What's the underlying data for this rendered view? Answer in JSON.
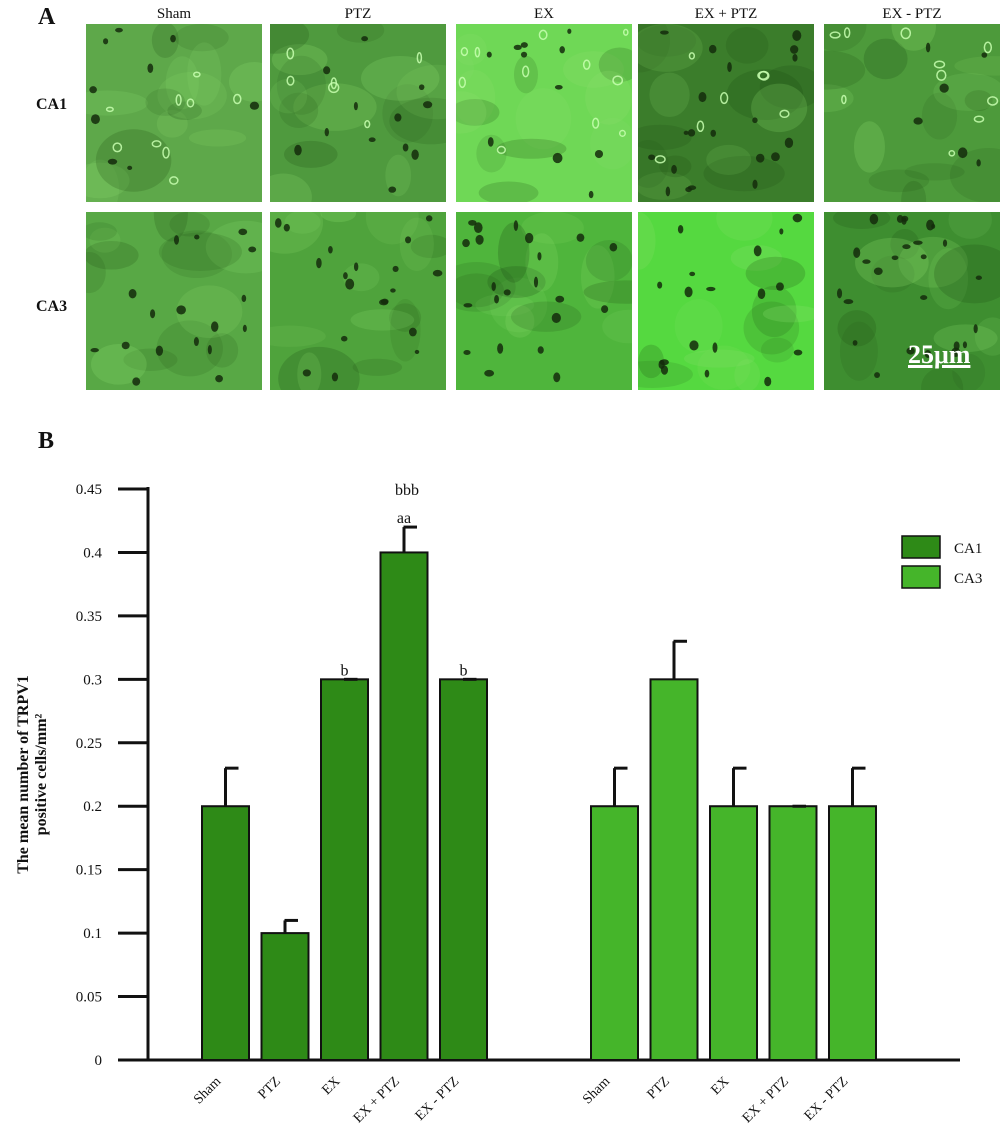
{
  "panel_a": {
    "letter": "A",
    "columns": [
      "Sham",
      "PTZ",
      "EX",
      "EX + PTZ",
      "EX - PTZ"
    ],
    "rows": [
      "CA1",
      "CA3"
    ],
    "scale_bar": "25μm",
    "tile_colors": {
      "CA1": [
        "#5ea84a",
        "#4f9a3e",
        "#6fd856",
        "#3b7d2b",
        "#4d9a3b"
      ],
      "CA3": [
        "#58a845",
        "#4fa33c",
        "#4fb53c",
        "#55d940",
        "#3e8e30"
      ]
    }
  },
  "panel_b": {
    "letter": "B"
  },
  "chart_data": {
    "type": "bar",
    "ylabel": "The mean number of TRPV1 positive cells/mm²",
    "ylim": [
      0,
      0.45
    ],
    "yticks": [
      "0",
      "0.05",
      "0.1",
      "0.15",
      "0.2",
      "0.25",
      "0.3",
      "0.35",
      "0.4",
      "0.45"
    ],
    "categories": [
      "Sham",
      "PTZ",
      "EX",
      "EX + PTZ",
      "EX - PTZ"
    ],
    "series": [
      {
        "name": "CA1",
        "color": "#2e8a17",
        "values": [
          0.2,
          0.1,
          0.3,
          0.4,
          0.3
        ],
        "errors": [
          0.03,
          0.01,
          0.0,
          0.02,
          0.0
        ],
        "annotations": [
          "",
          "",
          "b",
          "aa",
          "b"
        ]
      },
      {
        "name": "CA3",
        "color": "#45b52a",
        "values": [
          0.2,
          0.3,
          0.2,
          0.2,
          0.2
        ],
        "errors": [
          0.03,
          0.03,
          0.03,
          0.0,
          0.03
        ],
        "annotations": [
          "",
          "",
          "",
          "",
          ""
        ]
      }
    ],
    "extra_annotation": "bbb",
    "legend": "right"
  }
}
